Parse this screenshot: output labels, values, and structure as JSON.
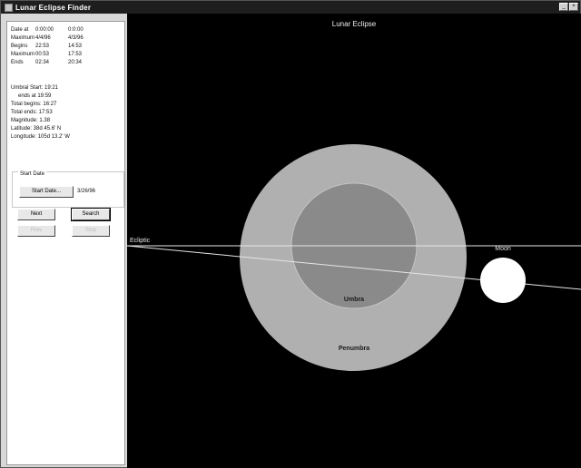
{
  "window": {
    "title": "Lunar Eclipse Finder",
    "controls": {
      "minimize": "_",
      "close": "×"
    }
  },
  "results": {
    "rows": [
      {
        "label": "Date at",
        "v1": "0:00:00",
        "v2": "0:0:00"
      },
      {
        "label": "Maximum",
        "v1": "4/4/96",
        "v2": "4/3/96"
      },
      {
        "label": "Begins",
        "v1": "22:53",
        "v2": "14:53"
      },
      {
        "label": "Maximum",
        "v1": "00:53",
        "v2": "17:53"
      },
      {
        "label": "Ends",
        "v1": "02:34",
        "v2": "20:34"
      }
    ],
    "info": [
      "Umbral Start: 19:21",
      "ends at 19:59",
      "Total begins: 16:27",
      "Total ends: 17:53",
      "Magnitude: 1.38",
      "Latitude: 38d 45.6' N",
      "Longitude: 105d 13.2' W"
    ]
  },
  "start_date": {
    "group_label": "Start Date",
    "button_label": "Start Date...",
    "value": "3/26/96"
  },
  "buttons": {
    "next": "Next",
    "search": "Search",
    "prev": "Prev",
    "stop": "Stop"
  },
  "canvas": {
    "title": "Lunar Eclipse",
    "ecliptic_label": "Ecliptic",
    "moon_label": "Moon",
    "umbra_label": "Umbra",
    "penumbra_label": "Penumbra",
    "colors": {
      "background": "#000000",
      "penumbra": "#b0b0b0",
      "umbra": "#8a8a8a",
      "moon": "#ffffff",
      "line": "#e6e6e6"
    }
  }
}
